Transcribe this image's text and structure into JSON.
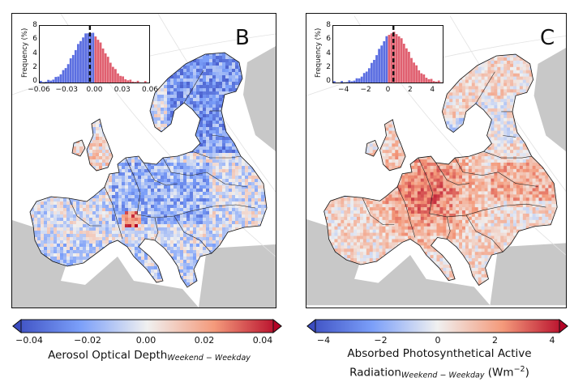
{
  "panels": [
    {
      "letter": "B",
      "colorbar": {
        "ticks": [
          "−0.04",
          "−0.02",
          "0.00",
          "0.02",
          "0.04"
        ],
        "label_main": "Aerosol Optical Depth",
        "label_sub": "Weekend − Weekday",
        "range": [
          -0.04,
          0.04
        ]
      },
      "inset": {
        "ylabel": "Frequency (%)",
        "yticks": [
          "8",
          "6",
          "4",
          "2",
          "0"
        ],
        "xticks": [
          "−0.06",
          "−0.03",
          "0.00",
          "0.03",
          "0.06"
        ],
        "xlim": [
          -0.06,
          0.06
        ],
        "mean_line": -0.005
      },
      "pattern": "aod"
    },
    {
      "letter": "C",
      "colorbar": {
        "ticks": [
          "−4",
          "−2",
          "0",
          "2",
          "4"
        ],
        "label_main": "Absorbed Photosynthetical Active",
        "label_line2": "Radiation",
        "label_sub": "Weekend − Weekday",
        "label_unit": " (Wm",
        "label_unit_sup": "−2",
        "label_unit_close": ")",
        "range": [
          -4,
          4
        ]
      },
      "inset": {
        "ylabel": "Frequency (%)",
        "yticks": [
          "8",
          "6",
          "4",
          "2",
          "0"
        ],
        "xticks": [
          "−4",
          "−2",
          "0",
          "2",
          "4"
        ],
        "xlim": [
          -5,
          5
        ],
        "mean_line": 0.5
      },
      "pattern": "apar"
    }
  ],
  "colors": {
    "cold": "#3b4cc0",
    "neutral": "#f0f0f0",
    "warm": "#b40426",
    "ocean_land": "#c8c8c8",
    "hist_blue": "#5b6ee1",
    "hist_red": "#e06070"
  }
}
